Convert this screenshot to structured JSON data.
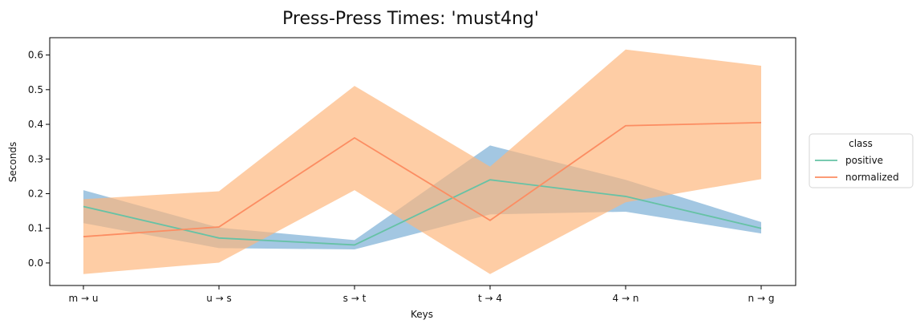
{
  "chart_data": {
    "type": "line",
    "title": "Press-Press Times: 'must4ng'",
    "xlabel": "Keys",
    "ylabel": "Seconds",
    "categories": [
      "m → u",
      "u → s",
      "s → t",
      "t → 4",
      "4 → n",
      "n → g"
    ],
    "ylim": [
      -0.065,
      0.65
    ],
    "yticks": [
      0.0,
      0.1,
      0.2,
      0.3,
      0.4,
      0.5,
      0.6
    ],
    "ytick_labels": [
      "0.0",
      "0.1",
      "0.2",
      "0.3",
      "0.4",
      "0.5",
      "0.6"
    ],
    "grid": false,
    "legend": {
      "title": "class",
      "placement": "right"
    },
    "series": [
      {
        "name": "positive",
        "values": [
          0.163,
          0.072,
          0.052,
          0.24,
          0.192,
          0.1
        ],
        "lower": [
          0.115,
          0.043,
          0.039,
          0.14,
          0.148,
          0.085
        ],
        "upper": [
          0.21,
          0.102,
          0.066,
          0.339,
          0.24,
          0.118
        ],
        "line_color": "#66c2a5",
        "band_color": "#7fb2d7"
      },
      {
        "name": "normalized",
        "values": [
          0.076,
          0.104,
          0.361,
          0.123,
          0.396,
          0.405
        ],
        "lower": [
          -0.032,
          0.001,
          0.21,
          -0.032,
          0.175,
          0.242
        ],
        "upper": [
          0.184,
          0.207,
          0.511,
          0.278,
          0.616,
          0.569
        ],
        "line_color": "#fc8d62",
        "band_color": "#fdb57a"
      }
    ]
  }
}
